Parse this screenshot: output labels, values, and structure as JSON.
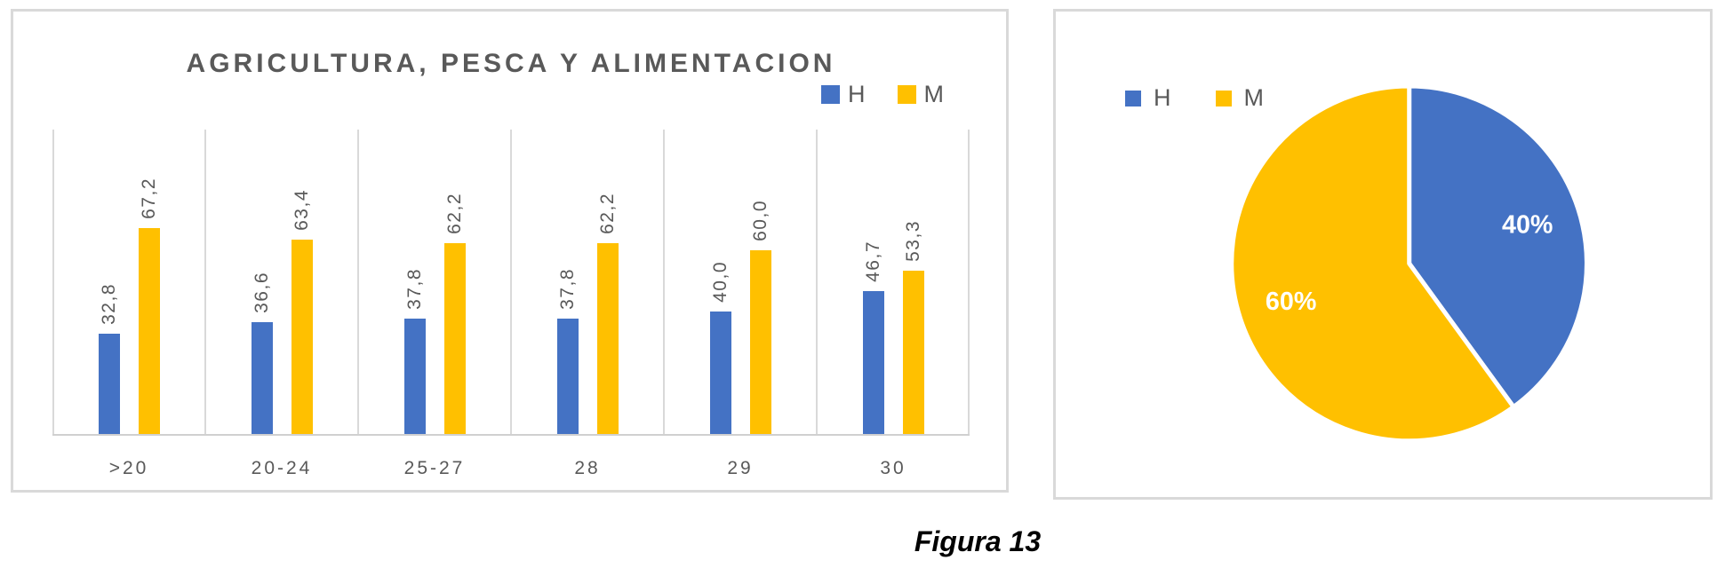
{
  "caption": "Figura 13",
  "colors": {
    "h_series": "#4472C4",
    "m_series": "#FFC000",
    "text_gray": "#595959",
    "gridline": "#D9D9D9",
    "pie_label_text": "#FFFFFF",
    "panel_border": "#D9D9D9"
  },
  "chart_data": [
    {
      "type": "bar",
      "title": "AGRICULTURA, PESCA Y ALIMENTACION",
      "categories": [
        ">20",
        "20-24",
        "25-27",
        "28",
        "29",
        "30"
      ],
      "series": [
        {
          "name": "H",
          "color": "#4472C4",
          "values": [
            32.8,
            36.6,
            37.8,
            37.8,
            40.0,
            46.7
          ]
        },
        {
          "name": "M",
          "color": "#FFC000",
          "values": [
            67.2,
            63.4,
            62.2,
            62.2,
            60.0,
            53.3
          ]
        }
      ],
      "value_labels": [
        [
          "32,8",
          "36,6",
          "37,8",
          "37,8",
          "40,0",
          "46,7"
        ],
        [
          "67,2",
          "63,4",
          "62,2",
          "62,2",
          "60,0",
          "53,3"
        ]
      ],
      "xlabel": "",
      "ylabel": "",
      "ylim": [
        0,
        100
      ],
      "grid": "vertical-category-boundaries",
      "legend_position": "top-right",
      "data_label_rotation": 90,
      "decimal_separator": ","
    },
    {
      "type": "pie",
      "title": "",
      "slices": [
        {
          "name": "H",
          "value": 40,
          "label": "40%",
          "color": "#4472C4"
        },
        {
          "name": "M",
          "value": 60,
          "label": "60%",
          "color": "#FFC000"
        }
      ],
      "start_angle_deg": 0,
      "direction": "clockwise",
      "legend_position": "top-left",
      "slice_separator_color": "#FFFFFF"
    }
  ]
}
